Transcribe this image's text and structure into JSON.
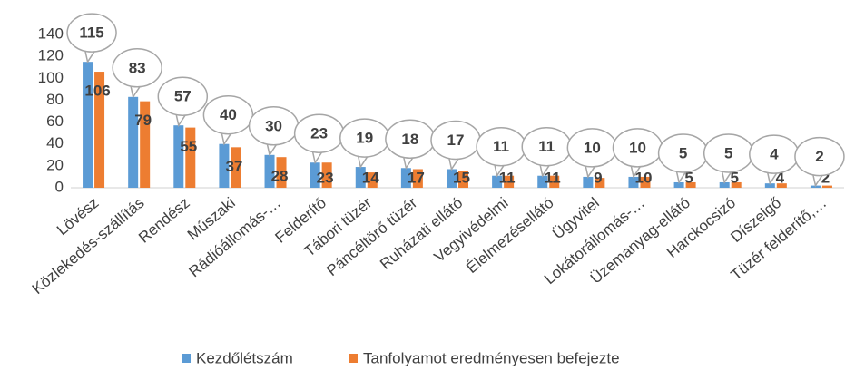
{
  "chart_data": {
    "type": "bar",
    "categories": [
      "Lövész",
      "Közlekedés-szállítás",
      "Rendész",
      "Műszaki",
      "Rádióállomás-…",
      "Felderítő",
      "Tábori tüzér",
      "Páncéltörő tüzér",
      "Ruházati ellátó",
      "Vegyivédelmi",
      "Élelmezésellátó",
      "Ügyvitel",
      "Lokátorállomás-…",
      "Üzemanyag-ellátó",
      "Harckocsizó",
      "Díszelgő",
      "Tüzér felderítő,…"
    ],
    "series": [
      {
        "name": "Kezdőlétszám",
        "color": "#5b9bd5",
        "values": [
          115,
          83,
          57,
          40,
          30,
          23,
          19,
          18,
          17,
          11,
          11,
          10,
          10,
          5,
          5,
          4,
          2
        ]
      },
      {
        "name": "Tanfolyamot eredményesen befejezte",
        "color": "#ed7d31",
        "values": [
          106,
          79,
          55,
          37,
          28,
          23,
          14,
          17,
          15,
          11,
          11,
          9,
          10,
          5,
          5,
          4,
          2
        ]
      }
    ],
    "ylim": [
      0,
      140
    ],
    "yticks": [
      0,
      20,
      40,
      60,
      80,
      100,
      120,
      140
    ],
    "grid": false,
    "legend": "bottom"
  }
}
